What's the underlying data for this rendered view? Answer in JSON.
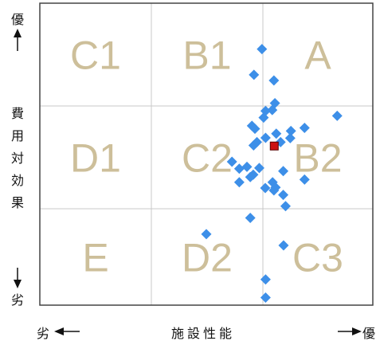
{
  "chart_data": {
    "type": "scatter",
    "grid": true,
    "x_axis": {
      "label": "施設性能",
      "low": "劣",
      "high": "優"
    },
    "y_axis": {
      "label": "費用対効果",
      "low": "劣",
      "high": "優"
    },
    "xlim": [
      0,
      100
    ],
    "ylim": [
      0,
      100
    ],
    "cells": [
      {
        "label": "C1",
        "col": 0,
        "row": 0
      },
      {
        "label": "B1",
        "col": 1,
        "row": 0
      },
      {
        "label": "A",
        "col": 2,
        "row": 0
      },
      {
        "label": "D1",
        "col": 0,
        "row": 1
      },
      {
        "label": "C2",
        "col": 1,
        "row": 1
      },
      {
        "label": "B2",
        "col": 2,
        "row": 1
      },
      {
        "label": "E",
        "col": 0,
        "row": 2
      },
      {
        "label": "D2",
        "col": 1,
        "row": 2
      },
      {
        "label": "C3",
        "col": 2,
        "row": 2
      }
    ],
    "series": [
      {
        "marker": "diamond",
        "color": "#3d8fe8",
        "points": [
          [
            66.7,
            84.8
          ],
          [
            64.3,
            76.3
          ],
          [
            70.3,
            74.4
          ],
          [
            70.6,
            66.9
          ],
          [
            69.8,
            64.6
          ],
          [
            67.8,
            64.3
          ],
          [
            67.2,
            62.1
          ],
          [
            63.7,
            59.4
          ],
          [
            64.6,
            58.4
          ],
          [
            79.5,
            58.7
          ],
          [
            75.4,
            57.7
          ],
          [
            89.3,
            62.7
          ],
          [
            71.0,
            56.8
          ],
          [
            67.8,
            55.4
          ],
          [
            72.3,
            54.0
          ],
          [
            65.2,
            54.0
          ],
          [
            64.2,
            52.9
          ],
          [
            75.2,
            55.3
          ],
          [
            57.7,
            47.5
          ],
          [
            62.2,
            45.8
          ],
          [
            59.9,
            45.2
          ],
          [
            65.9,
            45.4
          ],
          [
            64.1,
            43.2
          ],
          [
            63.2,
            42.4
          ],
          [
            73.1,
            44.4
          ],
          [
            79.5,
            41.6
          ],
          [
            69.9,
            40.7
          ],
          [
            59.9,
            40.7
          ],
          [
            67.7,
            38.8
          ],
          [
            70.8,
            39.0
          ],
          [
            73.1,
            36.5
          ],
          [
            70.3,
            38.0
          ],
          [
            73.8,
            32.8
          ],
          [
            63.2,
            28.9
          ],
          [
            50.0,
            23.5
          ],
          [
            73.2,
            19.8
          ],
          [
            67.8,
            8.5
          ],
          [
            67.8,
            2.5
          ]
        ]
      },
      {
        "marker": "square",
        "color": "#cc1111",
        "points": [
          [
            70.4,
            52.7
          ]
        ]
      }
    ]
  }
}
